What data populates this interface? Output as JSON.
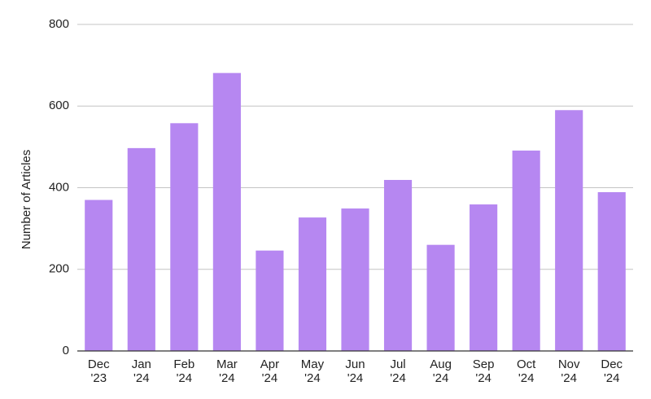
{
  "chart_data": {
    "type": "bar",
    "title": "",
    "xlabel": "",
    "ylabel": "Number of Articles",
    "ylim": [
      0,
      800
    ],
    "yticks": [
      0,
      200,
      400,
      600,
      800
    ],
    "grid": true,
    "legend": "none",
    "categories": [
      [
        "Dec",
        "'23"
      ],
      [
        "Jan",
        "'24"
      ],
      [
        "Feb",
        "'24"
      ],
      [
        "Mar",
        "'24"
      ],
      [
        "Apr",
        "'24"
      ],
      [
        "May",
        "'24"
      ],
      [
        "Jun",
        "'24"
      ],
      [
        "Jul",
        "'24"
      ],
      [
        "Aug",
        "'24"
      ],
      [
        "Sep",
        "'24"
      ],
      [
        "Oct",
        "'24"
      ],
      [
        "Nov",
        "'24"
      ],
      [
        "Dec",
        "'24"
      ]
    ],
    "values": [
      370,
      497,
      558,
      681,
      246,
      327,
      349,
      419,
      260,
      359,
      491,
      590,
      389
    ],
    "colors": {
      "bar": "#b687f1",
      "grid": "#c4c4c4",
      "axis": "#333333",
      "text": "#222222"
    }
  }
}
